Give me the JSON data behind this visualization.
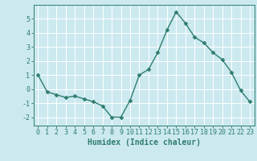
{
  "x": [
    0,
    1,
    2,
    3,
    4,
    5,
    6,
    7,
    8,
    9,
    10,
    11,
    12,
    13,
    14,
    15,
    16,
    17,
    18,
    19,
    20,
    21,
    22,
    23
  ],
  "y": [
    1.0,
    -0.2,
    -0.4,
    -0.6,
    -0.5,
    -0.7,
    -0.9,
    -1.2,
    -2.0,
    -2.0,
    -0.8,
    1.0,
    1.4,
    2.6,
    4.2,
    5.5,
    4.7,
    3.7,
    3.3,
    2.6,
    2.1,
    1.2,
    -0.1,
    -0.9
  ],
  "line_color": "#2e7d6e",
  "marker_color": "#2e7d6e",
  "bg_color": "#cce9f0",
  "grid_color": "#ffffff",
  "axis_color": "#2e7d6e",
  "tick_color": "#2e7d6e",
  "xlabel": "Humidex (Indice chaleur)",
  "xlabel_color": "#2e7d6e",
  "xlim": [
    -0.5,
    23.5
  ],
  "ylim": [
    -2.6,
    6.0
  ],
  "yticks": [
    -2,
    -1,
    0,
    1,
    2,
    3,
    4,
    5
  ],
  "xticks": [
    0,
    1,
    2,
    3,
    4,
    5,
    6,
    7,
    8,
    9,
    10,
    11,
    12,
    13,
    14,
    15,
    16,
    17,
    18,
    19,
    20,
    21,
    22,
    23
  ],
  "marker_size": 2.5,
  "line_width": 1.0,
  "font_size_label": 7,
  "font_size_tick": 6
}
